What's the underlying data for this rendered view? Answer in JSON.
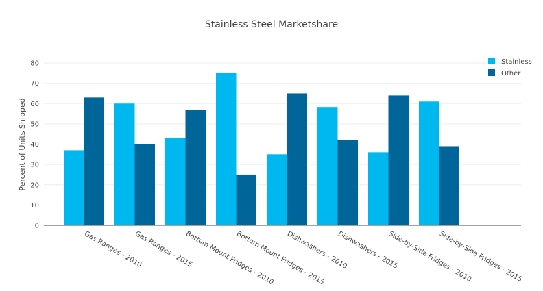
{
  "colors": {
    "stainless": "#00b8f0",
    "other": "#006699",
    "grid": "#eeeeee",
    "text": "#444444"
  },
  "chart_data": {
    "type": "bar",
    "title": "Stainless Steel Marketshare",
    "xlabel": "",
    "ylabel": "Percent of Units Shipped",
    "ylim": [
      0,
      80
    ],
    "yticks": [
      0,
      10,
      20,
      30,
      40,
      50,
      60,
      70,
      80
    ],
    "grid": true,
    "legend_position": "top-right",
    "categories": [
      "Gas Ranges - 2010",
      "Gas Ranges - 2015",
      "Bottom Mount Fridges - 2010",
      "Bottom Mount Fridges - 2015",
      "Dishwashers - 2010",
      "Dishwashers - 2015",
      "Side-by-Side Fridges - 2010",
      "Side-by-Side Fridges - 2015"
    ],
    "series": [
      {
        "name": "Stainless",
        "color": "#00b8f0",
        "values": [
          37,
          60,
          43,
          75,
          35,
          58,
          36,
          61
        ]
      },
      {
        "name": "Other",
        "color": "#006699",
        "values": [
          63,
          40,
          57,
          25,
          65,
          42,
          64,
          39
        ]
      }
    ]
  }
}
